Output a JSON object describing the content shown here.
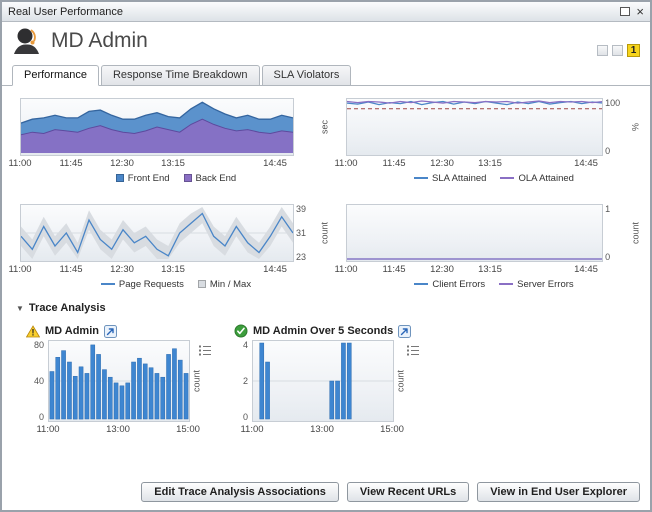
{
  "window": {
    "title": "Real User Performance"
  },
  "icons": {
    "close": "×",
    "collapse": "▼"
  },
  "header": {
    "title": "MD Admin",
    "badge": "1"
  },
  "tabs": [
    {
      "label": "Performance"
    },
    {
      "label": "Response Time Breakdown"
    },
    {
      "label": "SLA Violators"
    }
  ],
  "trace_section_label": "Trace Analysis",
  "footer_buttons": [
    "Edit Trace Analysis Associations",
    "View Recent URLs",
    "View in End User Explorer"
  ],
  "chart_data": {
    "response_time": {
      "type": "area",
      "ylabel": "sec",
      "ylim": [
        0,
        4
      ],
      "x_ticks": [
        "11:00",
        "11:45",
        "12:30",
        "13:15",
        "14:45"
      ],
      "series": [
        {
          "name": "Front End",
          "fill": "#5b92cc",
          "line": "#34659f",
          "values": [
            0.9,
            1.0,
            1.2,
            1.1,
            1.0,
            1.1,
            1.3,
            1.2,
            1.1,
            1.0,
            1.1,
            1.2,
            1.1,
            1.0,
            1.1,
            1.2,
            1.3,
            1.2,
            1.1,
            1.0,
            1.1,
            1.0,
            1.1,
            1.2,
            1.1
          ]
        },
        {
          "name": "Back End",
          "fill": "#8571c5",
          "line": "#5d4a9e",
          "values": [
            1.4,
            1.6,
            1.5,
            1.8,
            1.7,
            1.6,
            1.9,
            2.1,
            1.8,
            1.6,
            1.5,
            1.7,
            2.0,
            1.8,
            1.6,
            2.2,
            2.6,
            2.2,
            1.9,
            1.7,
            1.8,
            1.6,
            1.5,
            1.7,
            1.6
          ]
        }
      ]
    },
    "sla": {
      "type": "line",
      "ylabel": "%",
      "ylim": [
        0,
        100
      ],
      "y_ticks": [
        "100",
        "0"
      ],
      "threshold": 85,
      "x_ticks": [
        "11:00",
        "11:45",
        "12:30",
        "13:15",
        "14:45"
      ],
      "series": [
        {
          "name": "SLA Attained",
          "color": "#4a86c8",
          "values": [
            96,
            94,
            98,
            93,
            97,
            95,
            99,
            93,
            97,
            99,
            94,
            98,
            95,
            99,
            96,
            93,
            98,
            95,
            99,
            94,
            97,
            99,
            95,
            98,
            96
          ]
        },
        {
          "name": "OLA Attained",
          "color": "#8a6fc4",
          "values": [
            99,
            97,
            99,
            98,
            96,
            99,
            97,
            100,
            98,
            96,
            99,
            98,
            97,
            99,
            98,
            99,
            96,
            98,
            100,
            97,
            99,
            98,
            99,
            97,
            99
          ]
        }
      ]
    },
    "page_requests": {
      "type": "line",
      "ylabel": "count",
      "ylim": [
        23,
        39
      ],
      "y_ticks": [
        "39",
        "31",
        "23"
      ],
      "grid_values": [
        31
      ],
      "band": 3,
      "minmax_label": "Min / Max",
      "x_ticks": [
        "11:00",
        "11:45",
        "12:30",
        "13:15",
        "14:45"
      ],
      "series": [
        {
          "name": "Page Requests",
          "color": "#4a86c8",
          "values": [
            30,
            26,
            33,
            27,
            31,
            25,
            35,
            29,
            26,
            32,
            28,
            30,
            26,
            24,
            31,
            34,
            37,
            30,
            27,
            33,
            28,
            25,
            30,
            36,
            31
          ]
        }
      ]
    },
    "errors": {
      "type": "line",
      "ylabel": "count",
      "ylim": [
        0,
        1
      ],
      "y_ticks": [
        "1",
        "0"
      ],
      "x_ticks": [
        "11:00",
        "11:45",
        "12:30",
        "13:15",
        "14:45"
      ],
      "series": [
        {
          "name": "Client Errors",
          "color": "#4a86c8",
          "values": [
            0,
            0,
            0,
            0,
            0,
            0,
            0,
            0,
            0,
            0,
            0,
            0,
            0,
            0,
            0,
            0,
            0,
            0,
            0,
            0,
            0,
            0,
            0,
            0,
            0
          ]
        },
        {
          "name": "Server Errors",
          "color": "#8a6fc4",
          "values": [
            0,
            0,
            0,
            0,
            0,
            0,
            0,
            0,
            0,
            0,
            0,
            0,
            0,
            0,
            0,
            0,
            0,
            0,
            0,
            0,
            0,
            0,
            0,
            0,
            0
          ]
        }
      ]
    },
    "trace_md_admin": {
      "type": "bar",
      "title": "MD Admin",
      "status": "warning",
      "ylabel": "count",
      "ylim": [
        0,
        80
      ],
      "y_ticks": [
        "80",
        "40",
        "0"
      ],
      "grid_values": [
        40
      ],
      "x_ticks": [
        "11:00",
        "13:00",
        "15:00"
      ],
      "color": "#3e86d1",
      "bar_stroke": "#2d6cb0",
      "values": [
        50,
        65,
        72,
        60,
        45,
        55,
        48,
        78,
        68,
        52,
        44,
        38,
        35,
        38,
        60,
        64,
        58,
        54,
        48,
        44,
        68,
        74,
        62,
        48
      ]
    },
    "trace_over5": {
      "type": "bar",
      "title": "MD Admin Over 5 Seconds",
      "status": "ok",
      "ylabel": "count",
      "ylim": [
        0,
        4
      ],
      "y_ticks": [
        "4",
        "2",
        "0"
      ],
      "grid_values": [
        2
      ],
      "x_ticks": [
        "11:00",
        "13:00",
        "15:00"
      ],
      "color": "#3e86d1",
      "bar_stroke": "#2d6cb0",
      "values": [
        0,
        4,
        3,
        0,
        0,
        0,
        0,
        0,
        0,
        0,
        0,
        0,
        0,
        2,
        2,
        4,
        4,
        0,
        0,
        0,
        0,
        0,
        0,
        0
      ]
    }
  }
}
